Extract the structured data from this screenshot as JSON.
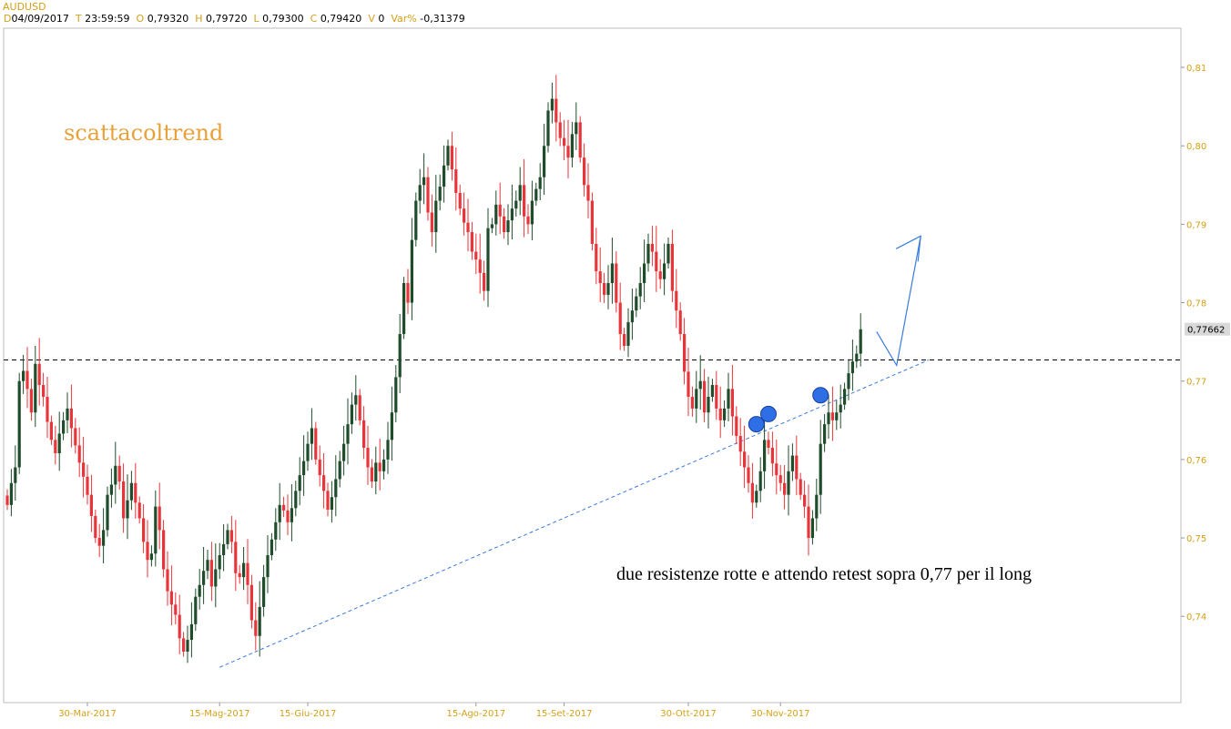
{
  "symbol": "AUDUSD",
  "info": {
    "d_key": "D",
    "d_val": "04/09/2017",
    "t_key": "T",
    "t_val": "23:59:59",
    "o_key": "O",
    "o_val": "0,79320",
    "h_key": "H",
    "h_val": "0,79720",
    "l_key": "L",
    "l_val": "0,79300",
    "c_key": "C",
    "c_val": "0,79420",
    "v_key": "V",
    "v_val": "0",
    "var_key": "Var%",
    "var_val": "-0,31379"
  },
  "annotations": {
    "watermark": "scattacoltrend",
    "note": "due resistenze rotte e attendo retest sopra 0,77 per il long",
    "last_price": "0,77662"
  },
  "colors": {
    "up": "#1f4d2b",
    "down": "#e8353a",
    "axis_text": "#d4a017",
    "trend": "#3a7be0",
    "marker": "#2f6fe6",
    "resistance": "#000000",
    "price_box": "#d9d9d9"
  },
  "chart_data": {
    "type": "candlestick",
    "title": "AUDUSD",
    "y_ticks": [
      "0,74",
      "0,75",
      "0,76",
      "0,77",
      "0,78",
      "0,79",
      "0,80",
      "0,81"
    ],
    "y_tick_values": [
      0.74,
      0.75,
      0.76,
      0.77,
      0.78,
      0.79,
      0.8,
      0.81
    ],
    "ylim": [
      0.729,
      0.815
    ],
    "x_ticks": [
      "30-Mar-2017",
      "15-Mag-2017",
      "15-Giu-2017",
      "15-Ago-2017",
      "15-Set-2017",
      "30-Ott-2017",
      "30-Nov-2017"
    ],
    "x_tick_index": [
      20,
      53,
      75,
      117,
      139,
      170,
      193
    ],
    "last_price": 0.77662,
    "resistance_level": 0.7727,
    "trendline": {
      "start_index": 53,
      "start_value": 0.7335,
      "end_index": 230,
      "end_value": 0.7727
    },
    "markers": [
      {
        "index": 187,
        "value": 0.7645
      },
      {
        "index": 190,
        "value": 0.7658
      },
      {
        "index": 203,
        "value": 0.7682
      }
    ],
    "projection": [
      {
        "index": 217,
        "value": 0.7763
      },
      {
        "index": 222,
        "value": 0.772
      },
      {
        "index": 228,
        "value": 0.7885
      }
    ],
    "closes": [
      0.7542,
      0.757,
      0.759,
      0.77,
      0.7713,
      0.769,
      0.766,
      0.7722,
      0.7695,
      0.768,
      0.7648,
      0.7625,
      0.7608,
      0.7633,
      0.765,
      0.7665,
      0.764,
      0.7618,
      0.7596,
      0.7578,
      0.7555,
      0.7528,
      0.75,
      0.749,
      0.751,
      0.7555,
      0.7568,
      0.7592,
      0.7572,
      0.7525,
      0.7548,
      0.757,
      0.7545,
      0.7525,
      0.7495,
      0.7472,
      0.748,
      0.754,
      0.751,
      0.746,
      0.7432,
      0.7415,
      0.7402,
      0.7372,
      0.7355,
      0.737,
      0.739,
      0.7425,
      0.744,
      0.7458,
      0.7472,
      0.7438,
      0.746,
      0.7478,
      0.7492,
      0.751,
      0.7495,
      0.7455,
      0.745,
      0.7468,
      0.744,
      0.7395,
      0.7375,
      0.7412,
      0.745,
      0.7478,
      0.7498,
      0.752,
      0.7542,
      0.7535,
      0.752,
      0.7538,
      0.756,
      0.758,
      0.7598,
      0.762,
      0.764,
      0.76,
      0.758,
      0.756,
      0.7536,
      0.7552,
      0.7575,
      0.7598,
      0.762,
      0.7645,
      0.767,
      0.7682,
      0.765,
      0.7615,
      0.759,
      0.7572,
      0.7596,
      0.7585,
      0.76,
      0.7625,
      0.766,
      0.7705,
      0.776,
      0.7825,
      0.78,
      0.788,
      0.793,
      0.795,
      0.796,
      0.7915,
      0.789,
      0.793,
      0.7948,
      0.7975,
      0.8,
      0.797,
      0.794,
      0.792,
      0.7902,
      0.789,
      0.7865,
      0.7855,
      0.7838,
      0.7815,
      0.7895,
      0.79,
      0.7925,
      0.791,
      0.789,
      0.7905,
      0.792,
      0.793,
      0.795,
      0.791,
      0.79,
      0.793,
      0.7945,
      0.796,
      0.8,
      0.8045,
      0.806,
      0.803,
      0.801,
      0.8,
      0.7985,
      0.8015,
      0.803,
      0.7985,
      0.795,
      0.793,
      0.7875,
      0.784,
      0.7825,
      0.781,
      0.7825,
      0.785,
      0.78,
      0.776,
      0.7745,
      0.7775,
      0.779,
      0.7808,
      0.7825,
      0.785,
      0.7875,
      0.7865,
      0.784,
      0.783,
      0.785,
      0.7875,
      0.7815,
      0.779,
      0.776,
      0.7712,
      0.768,
      0.7665,
      0.769,
      0.77,
      0.766,
      0.768,
      0.7695,
      0.7665,
      0.765,
      0.7665,
      0.769,
      0.7655,
      0.763,
      0.761,
      0.759,
      0.757,
      0.7545,
      0.756,
      0.7585,
      0.7625,
      0.7615,
      0.7595,
      0.758,
      0.757,
      0.7555,
      0.7585,
      0.7605,
      0.7575,
      0.7555,
      0.754,
      0.75,
      0.7525,
      0.7555,
      0.762,
      0.7645,
      0.766,
      0.765,
      0.766,
      0.767,
      0.769,
      0.771,
      0.7725,
      0.7735,
      0.7766
    ]
  }
}
